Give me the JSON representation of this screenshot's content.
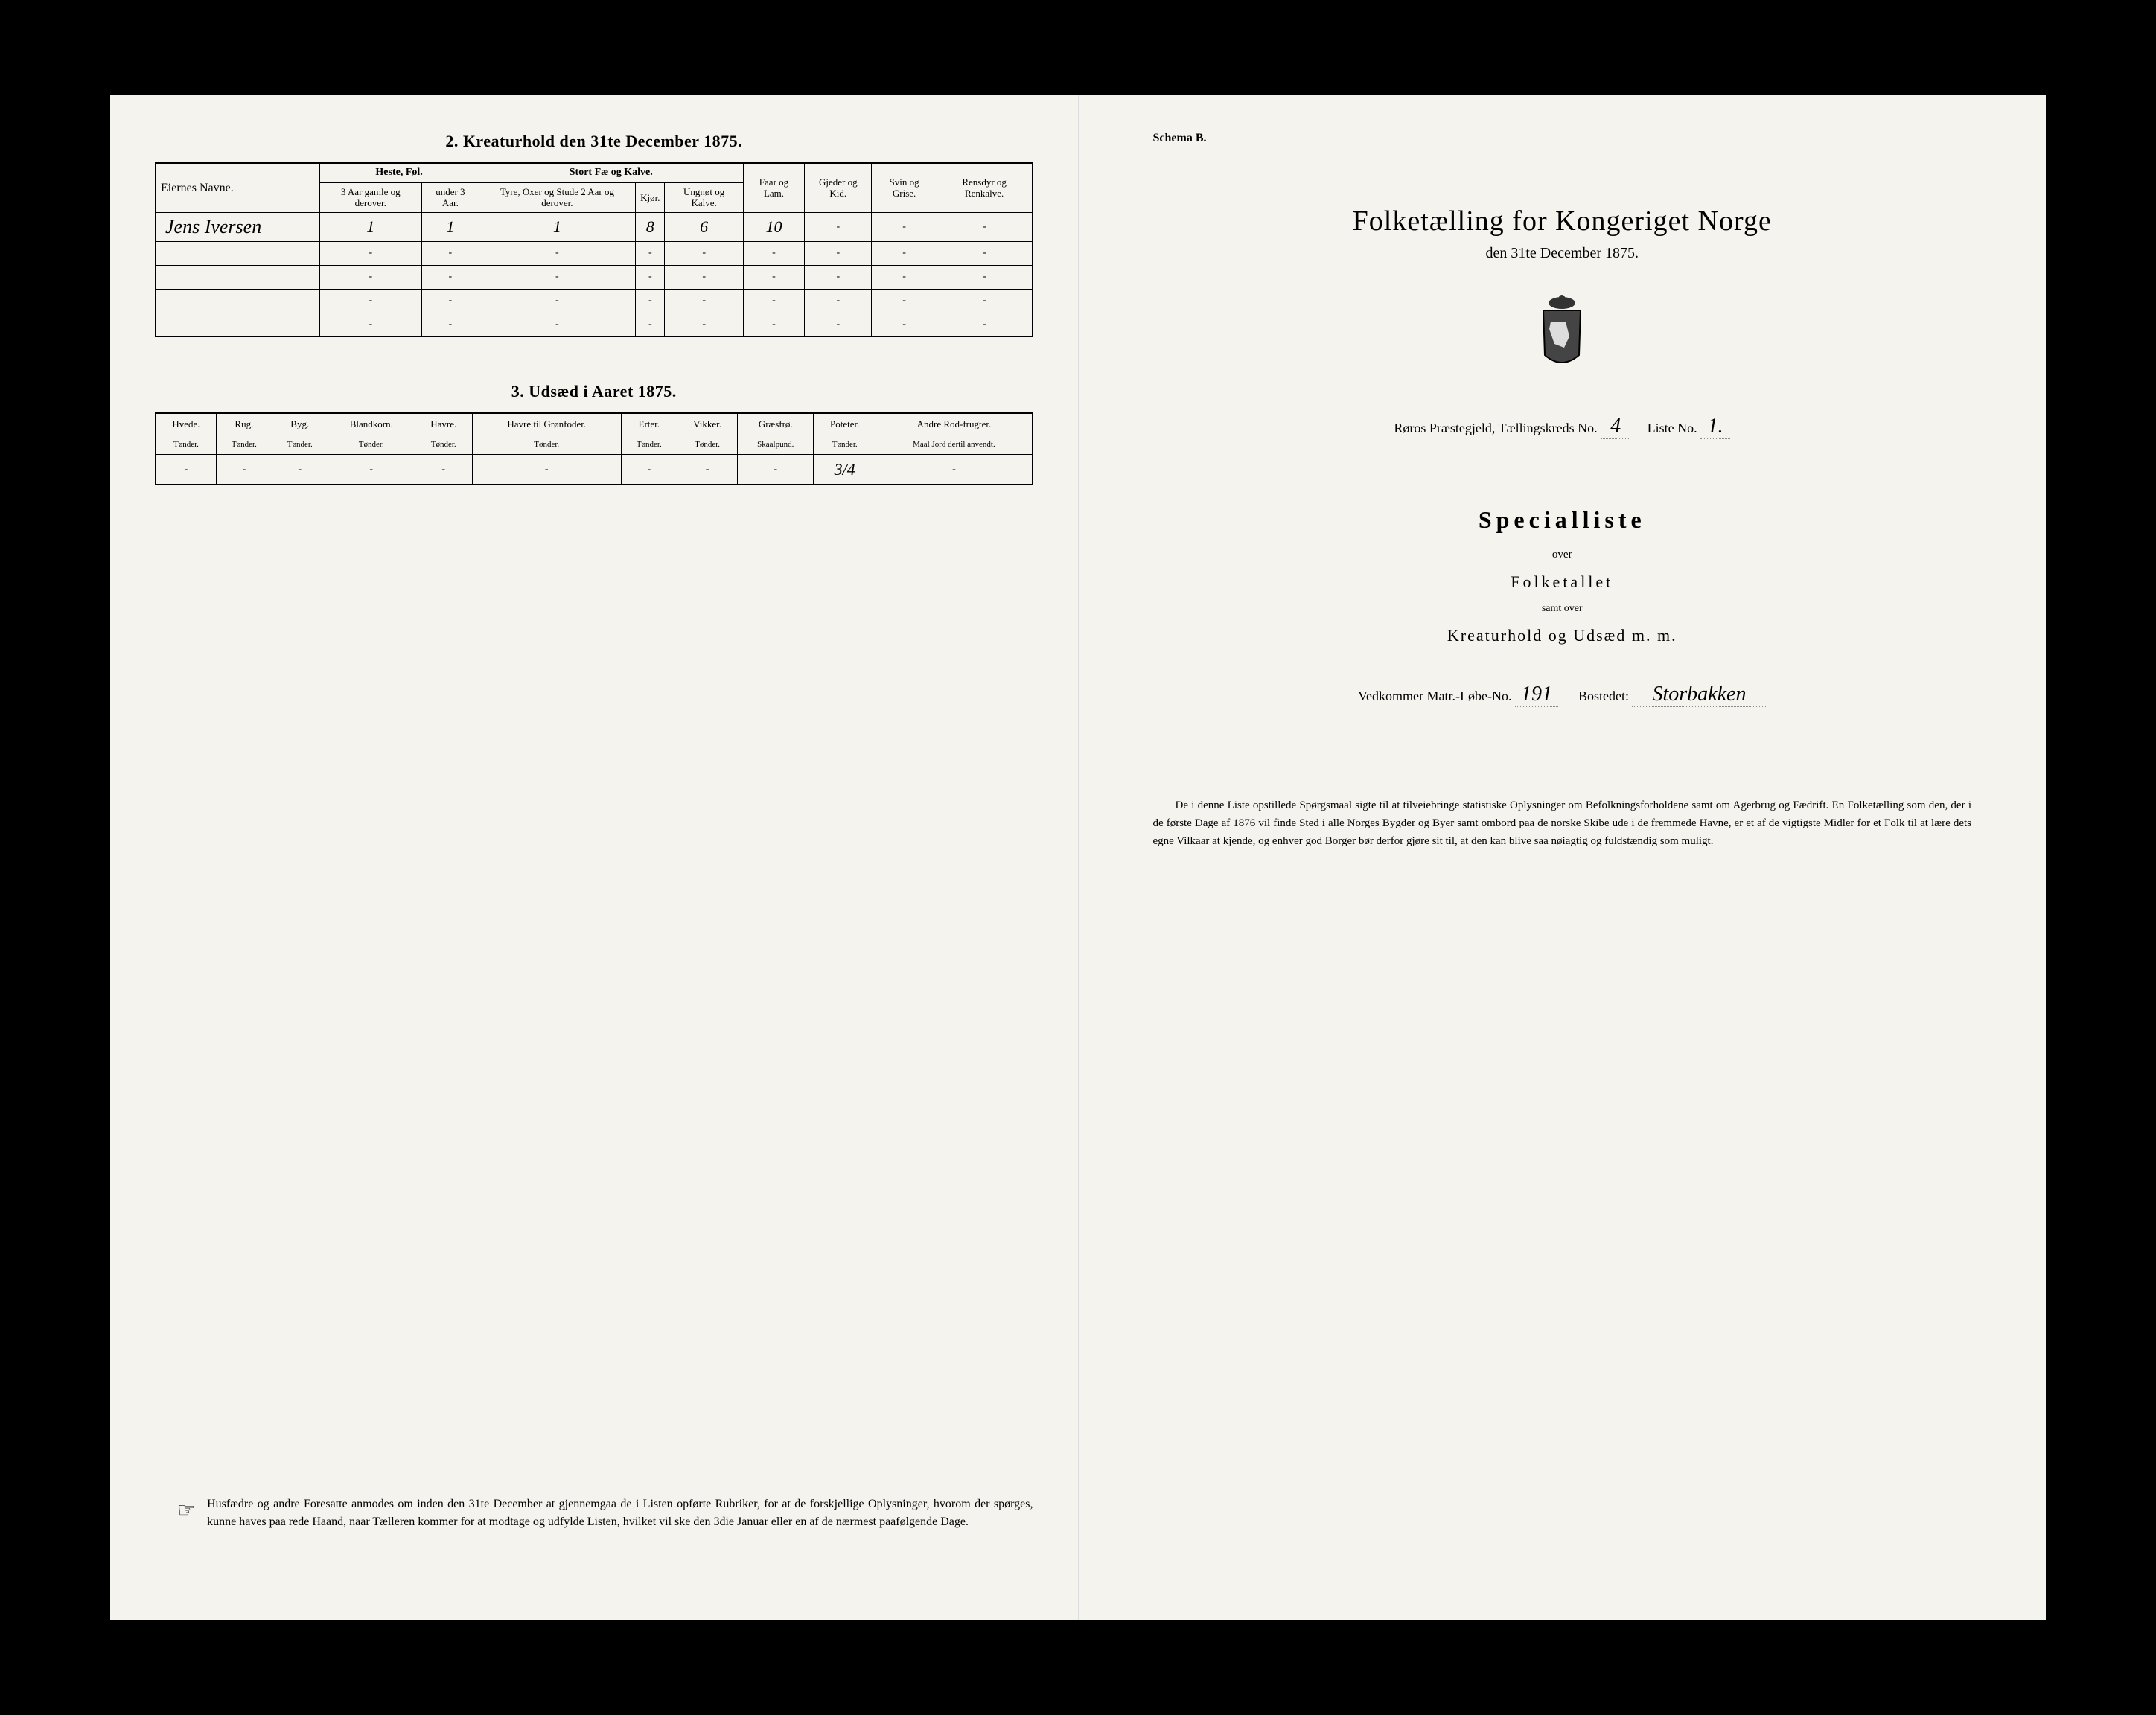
{
  "leftPage": {
    "section2Title": "2. Kreaturhold den 31te December 1875.",
    "table1": {
      "nameHeader": "Eiernes Navne.",
      "groupHeaders": [
        "Heste, Føl.",
        "Stort Fæ og Kalve."
      ],
      "colHeaders": [
        "3 Aar gamle og derover.",
        "under 3 Aar.",
        "Tyre, Oxer og Stude 2 Aar og derover.",
        "Kjør.",
        "Ungnøt og Kalve.",
        "Faar og Lam.",
        "Gjeder og Kid.",
        "Svin og Grise.",
        "Rensdyr og Renkalve."
      ],
      "rows": [
        {
          "name": "Jens Iversen",
          "vals": [
            "1",
            "1",
            "1",
            "8",
            "6",
            "10",
            "-",
            "-",
            "-"
          ]
        },
        {
          "name": "",
          "vals": [
            "-",
            "-",
            "-",
            "-",
            "-",
            "-",
            "-",
            "-",
            "-"
          ]
        },
        {
          "name": "",
          "vals": [
            "-",
            "-",
            "-",
            "-",
            "-",
            "-",
            "-",
            "-",
            "-"
          ]
        },
        {
          "name": "",
          "vals": [
            "-",
            "-",
            "-",
            "-",
            "-",
            "-",
            "-",
            "-",
            "-"
          ]
        },
        {
          "name": "",
          "vals": [
            "-",
            "-",
            "-",
            "-",
            "-",
            "-",
            "-",
            "-",
            "-"
          ]
        }
      ]
    },
    "section3Title": "3. Udsæd i Aaret 1875.",
    "table2": {
      "headers": [
        "Hvede.",
        "Rug.",
        "Byg.",
        "Blandkorn.",
        "Havre.",
        "Havre til Grønfoder.",
        "Erter.",
        "Vikker.",
        "Græsfrø.",
        "Poteter.",
        "Andre Rod-frugter."
      ],
      "subheaders": [
        "Tønder.",
        "Tønder.",
        "Tønder.",
        "Tønder.",
        "Tønder.",
        "Tønder.",
        "Tønder.",
        "Tønder.",
        "Skaalpund.",
        "Tønder.",
        "Maal Jord dertil anvendt."
      ],
      "row": [
        "-",
        "-",
        "-",
        "-",
        "-",
        "-",
        "-",
        "-",
        "-",
        "3/4",
        "-"
      ]
    },
    "footerNote": "Husfædre og andre Foresatte anmodes om inden den 31te December at gjennemgaa de i Listen opførte Rubriker, for at de forskjellige Oplysninger, hvorom der spørges, kunne haves paa rede Haand, naar Tælleren kommer for at modtage og udfylde Listen, hvilket vil ske den 3die Januar eller en af de nærmest paafølgende Dage."
  },
  "rightPage": {
    "schemaLabel": "Schema B.",
    "mainTitle": "Folketælling for Kongeriget Norge",
    "subDate": "den 31te December 1875.",
    "districtPrefix": "Røros Præstegjeld, Tællingskreds No.",
    "districtNo": "4",
    "listeLabel": "Liste No.",
    "listeNo": "1.",
    "specialTitle": "Specialliste",
    "over": "over",
    "folketallet": "Folketallet",
    "samt": "samt over",
    "kreatur": "Kreaturhold og Udsæd m. m.",
    "vedkommerLabel": "Vedkommer Matr.-Løbe-No.",
    "matrNo": "191",
    "bostedetLabel": "Bostedet:",
    "bostedet": "Storbakken",
    "rightFooter": "De i denne Liste opstillede Spørgsmaal sigte til at tilveiebringe statistiske Oplysninger om Befolkningsforholdene samt om Agerbrug og Fædrift. En Folketælling som den, der i de første Dage af 1876 vil finde Sted i alle Norges Bygder og Byer samt ombord paa de norske Skibe ude i de fremmede Havne, er et af de vigtigste Midler for et Folk til at lære dets egne Vilkaar at kjende, og enhver god Borger bør derfor gjøre sit til, at den kan blive saa nøiagtig og fuldstændig som muligt."
  }
}
